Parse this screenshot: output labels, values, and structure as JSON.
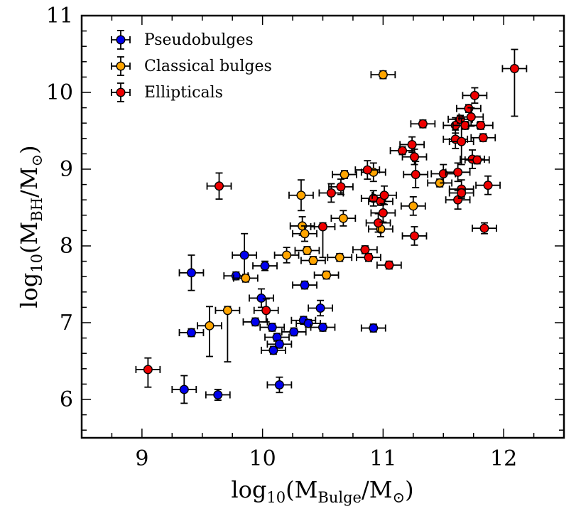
{
  "chart_data": {
    "type": "scatter",
    "title": "",
    "xlabel": {
      "main": "log",
      "sub": "10",
      "open": "(M",
      "msub": "Bulge",
      "rest": "/M",
      "odot": "⊙",
      "close": ")"
    },
    "ylabel": {
      "main": "log",
      "sub": "10",
      "open": "(M",
      "msub": "BH",
      "rest": "/M",
      "odot": "⊙",
      "close": ")"
    },
    "xlim": [
      8.5,
      12.5
    ],
    "ylim": [
      5.5,
      11
    ],
    "xticks": [
      9,
      10,
      11,
      12
    ],
    "xtick_labels": [
      "9",
      "10",
      "11",
      "12"
    ],
    "yticks": [
      6,
      7,
      8,
      9,
      10,
      11
    ],
    "ytick_labels": [
      "6",
      "7",
      "8",
      "9",
      "10",
      "11"
    ],
    "legend_position": "top-left",
    "series": [
      {
        "name": "Pseudobulges",
        "color": "#0000ee",
        "points": [
          {
            "x": 9.35,
            "y": 6.13,
            "yerr": 0.18
          },
          {
            "x": 9.63,
            "y": 6.06,
            "yerr": 0.07
          },
          {
            "x": 9.41,
            "y": 6.87,
            "yerr": 0.05
          },
          {
            "x": 9.41,
            "y": 7.65,
            "yerr": 0.23
          },
          {
            "x": 9.78,
            "y": 7.61,
            "yerr": 0.05
          },
          {
            "x": 9.85,
            "y": 7.88,
            "yerr": 0.28
          },
          {
            "x": 10.02,
            "y": 7.74,
            "yerr": 0.06
          },
          {
            "x": 9.94,
            "y": 7.01,
            "yerr": 0.05
          },
          {
            "x": 9.99,
            "y": 7.32,
            "yerr": 0.12
          },
          {
            "x": 10.08,
            "y": 6.94,
            "yerr": 0.05
          },
          {
            "x": 10.12,
            "y": 6.81,
            "yerr": 0.05
          },
          {
            "x": 10.09,
            "y": 6.64,
            "yerr": 0.05
          },
          {
            "x": 10.14,
            "y": 6.72,
            "yerr": 0.05
          },
          {
            "x": 10.14,
            "y": 6.19,
            "yerr": 0.1
          },
          {
            "x": 10.26,
            "y": 6.88,
            "yerr": 0.05
          },
          {
            "x": 10.34,
            "y": 7.03,
            "yerr": 0.05
          },
          {
            "x": 10.38,
            "y": 6.99,
            "yerr": 0.05
          },
          {
            "x": 10.35,
            "y": 7.49,
            "yerr": 0.05
          },
          {
            "x": 10.48,
            "y": 7.19,
            "yerr": 0.1
          },
          {
            "x": 10.5,
            "y": 6.94,
            "yerr": 0.05
          },
          {
            "x": 10.92,
            "y": 6.93,
            "yerr": 0.05
          }
        ]
      },
      {
        "name": "Classical bulges",
        "color": "#ffa500",
        "points": [
          {
            "x": 9.56,
            "y": 6.96,
            "yerr": 0.25,
            "yerr_low": 0.4
          },
          {
            "x": 9.71,
            "y": 7.16,
            "yerr": 0.05,
            "yerr_low": 0.67
          },
          {
            "x": 9.86,
            "y": 7.58,
            "yerr": 0.05
          },
          {
            "x": 10.2,
            "y": 7.88,
            "yerr": 0.1
          },
          {
            "x": 10.32,
            "y": 8.66,
            "yerr": 0.2
          },
          {
            "x": 10.33,
            "y": 8.26,
            "yerr": 0.12
          },
          {
            "x": 10.35,
            "y": 8.16,
            "yerr": 0.1
          },
          {
            "x": 10.37,
            "y": 7.94,
            "yerr": 0.05
          },
          {
            "x": 10.42,
            "y": 7.81,
            "yerr": 0.05
          },
          {
            "x": 10.53,
            "y": 7.62,
            "yerr": 0.05
          },
          {
            "x": 10.64,
            "y": 7.85,
            "yerr": 0.05
          },
          {
            "x": 10.67,
            "y": 8.36,
            "yerr": 0.1
          },
          {
            "x": 10.68,
            "y": 8.93,
            "yerr": 0.05
          },
          {
            "x": 10.92,
            "y": 8.96,
            "yerr": 0.12
          },
          {
            "x": 10.98,
            "y": 8.22,
            "yerr": 0.1
          },
          {
            "x": 11.0,
            "y": 10.23,
            "yerr": 0.05
          },
          {
            "x": 11.25,
            "y": 8.52,
            "yerr": 0.12
          },
          {
            "x": 11.47,
            "y": 8.82,
            "yerr": 0.05
          }
        ]
      },
      {
        "name": "Ellipticals",
        "color": "#ee0000",
        "points": [
          {
            "x": 9.05,
            "y": 6.39,
            "yerr": 0.15,
            "yerr_low": 0.23
          },
          {
            "x": 9.64,
            "y": 8.78,
            "yerr": 0.17
          },
          {
            "x": 10.03,
            "y": 7.16,
            "yerr": 0.15
          },
          {
            "x": 10.5,
            "y": 8.25,
            "yerr": 0.05,
            "yerr_low": 0.4
          },
          {
            "x": 10.57,
            "y": 8.69,
            "yerr": 0.12
          },
          {
            "x": 10.65,
            "y": 8.77,
            "yerr": 0.1
          },
          {
            "x": 10.85,
            "y": 7.95,
            "yerr": 0.05
          },
          {
            "x": 10.87,
            "y": 8.99,
            "yerr": 0.12
          },
          {
            "x": 10.88,
            "y": 7.85,
            "yerr": 0.05
          },
          {
            "x": 10.92,
            "y": 8.62,
            "yerr": 0.1
          },
          {
            "x": 10.96,
            "y": 8.3,
            "yerr": 0.12
          },
          {
            "x": 10.98,
            "y": 8.58,
            "yerr": 0.05
          },
          {
            "x": 11.0,
            "y": 8.43,
            "yerr": 0.12
          },
          {
            "x": 11.01,
            "y": 8.66,
            "yerr": 0.12
          },
          {
            "x": 11.05,
            "y": 7.75,
            "yerr": 0.05
          },
          {
            "x": 11.16,
            "y": 9.24,
            "yerr": 0.05
          },
          {
            "x": 11.24,
            "y": 9.32,
            "yerr": 0.1
          },
          {
            "x": 11.26,
            "y": 9.16,
            "yerr": 0.1
          },
          {
            "x": 11.27,
            "y": 8.93,
            "yerr": 0.17
          },
          {
            "x": 11.26,
            "y": 8.13,
            "yerr": 0.12
          },
          {
            "x": 11.33,
            "y": 9.59,
            "yerr": 0.05
          },
          {
            "x": 11.5,
            "y": 8.94,
            "yerr": 0.12
          },
          {
            "x": 11.6,
            "y": 9.57,
            "yerr": 0.1
          },
          {
            "x": 11.6,
            "y": 9.39,
            "yerr": 0.12
          },
          {
            "x": 11.62,
            "y": 8.96,
            "yerr": 0.12
          },
          {
            "x": 11.62,
            "y": 8.6,
            "yerr": 0.12
          },
          {
            "x": 11.64,
            "y": 9.65,
            "yerr": 0.05
          },
          {
            "x": 11.65,
            "y": 9.36,
            "yerr": 0.3
          },
          {
            "x": 11.65,
            "y": 8.74,
            "yerr": 0.12
          },
          {
            "x": 11.65,
            "y": 8.69,
            "yerr": 0.05
          },
          {
            "x": 11.68,
            "y": 9.57,
            "yerr": 0.05
          },
          {
            "x": 11.71,
            "y": 9.79,
            "yerr": 0.05
          },
          {
            "x": 11.73,
            "y": 9.68,
            "yerr": 0.12
          },
          {
            "x": 11.74,
            "y": 9.13,
            "yerr": 0.12
          },
          {
            "x": 11.76,
            "y": 9.96,
            "yerr": 0.1
          },
          {
            "x": 11.78,
            "y": 9.12,
            "yerr": 0.05
          },
          {
            "x": 11.81,
            "y": 9.57,
            "yerr": 0.05
          },
          {
            "x": 11.83,
            "y": 9.41,
            "yerr": 0.05
          },
          {
            "x": 11.84,
            "y": 8.23,
            "yerr": 0.07
          },
          {
            "x": 11.87,
            "y": 8.79,
            "yerr": 0.12
          },
          {
            "x": 12.09,
            "y": 10.31,
            "yerr": 0.25,
            "yerr_low": 0.62
          }
        ]
      }
    ]
  }
}
